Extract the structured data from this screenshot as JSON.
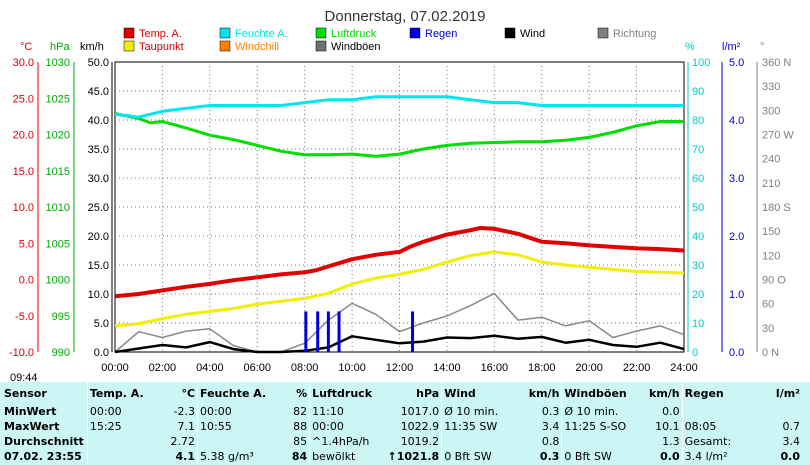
{
  "title": "Donnerstag, 07.02.2019",
  "legend": [
    {
      "label": "Temp. A.",
      "color": "#e00000"
    },
    {
      "label": "Feuchte A.",
      "color": "#00e5ee"
    },
    {
      "label": "Luftdruck",
      "color": "#00dd00"
    },
    {
      "label": "Regen",
      "color": "#0000dd"
    },
    {
      "label": "Wind",
      "color": "#000000"
    },
    {
      "label": "Richtung",
      "color": "#808080"
    },
    {
      "label": "Taupunkt",
      "color": "#f0f000"
    },
    {
      "label": "Windchill",
      "color": "#ff8000"
    },
    {
      "label": "Windböen",
      "color": "#707070"
    }
  ],
  "axis_units": {
    "temp": "°C",
    "press": "hPa",
    "wind": "km/h",
    "hum": "%",
    "rain": "l/m²",
    "dir": "°"
  },
  "time_label": "09:44",
  "chart_data": {
    "type": "line",
    "title": "Donnerstag, 07.02.2019",
    "x_ticks": [
      "00:00",
      "02:00",
      "04:00",
      "06:00",
      "08:00",
      "10:00",
      "12:00",
      "14:00",
      "16:00",
      "18:00",
      "20:00",
      "22:00",
      "24:00"
    ],
    "axes": {
      "temp_c": {
        "range": [
          -10,
          30
        ],
        "ticks": [
          "30.0",
          "25.0",
          "20.0",
          "15.0",
          "10.0",
          "5.0",
          "0.0",
          "-5.0",
          "-10.0"
        ]
      },
      "pressure_hpa": {
        "range": [
          990,
          1030
        ],
        "ticks": [
          "1030",
          "1025",
          "1020",
          "1015",
          "1010",
          "1005",
          "1000",
          "995",
          "990"
        ]
      },
      "wind_kmh": {
        "range": [
          0,
          50
        ],
        "ticks": [
          "50.0",
          "45.0",
          "40.0",
          "35.0",
          "30.0",
          "25.0",
          "20.0",
          "15.0",
          "10.0",
          "5.0",
          "0.0"
        ]
      },
      "humidity_pct": {
        "range": [
          0,
          100
        ],
        "ticks": [
          "100",
          "90",
          "80",
          "70",
          "60",
          "50",
          "40",
          "30",
          "20",
          "10",
          "0"
        ]
      },
      "rain_lm2": {
        "range": [
          0,
          5
        ],
        "ticks": [
          "5.0",
          "4.0",
          "3.0",
          "2.0",
          "1.0",
          "0.0"
        ]
      },
      "direction": {
        "range": [
          0,
          360
        ],
        "ticks": [
          "360 N",
          "330",
          "300",
          "270 W",
          "240",
          "210",
          "180 S",
          "150",
          "120",
          "90 O",
          "60",
          "30",
          "0 N"
        ]
      }
    },
    "series": [
      {
        "name": "Temp. A.",
        "axis": "temp_c",
        "x": [
          0,
          1,
          2,
          3,
          4,
          5,
          6,
          7,
          8,
          8.5,
          9,
          9.5,
          10,
          11,
          12,
          12.5,
          13,
          14,
          15,
          15.4,
          16,
          17,
          18,
          19,
          20,
          21,
          22,
          23,
          24
        ],
        "values": [
          -2.3,
          -2.0,
          -1.5,
          -1.0,
          -0.6,
          -0.1,
          0.3,
          0.7,
          1.0,
          1.3,
          1.8,
          2.3,
          2.8,
          3.4,
          3.8,
          4.6,
          5.2,
          6.2,
          6.8,
          7.1,
          7.0,
          6.3,
          5.2,
          5.0,
          4.7,
          4.5,
          4.3,
          4.2,
          4.0
        ]
      },
      {
        "name": "Taupunkt",
        "axis": "temp_c",
        "x": [
          0,
          1,
          2,
          3,
          4,
          5,
          6,
          7,
          8,
          9,
          10,
          11,
          12,
          13,
          14,
          15,
          16,
          17,
          18,
          19,
          20,
          21,
          22,
          23,
          24
        ],
        "values": [
          -6.4,
          -6.1,
          -5.4,
          -4.8,
          -4.4,
          -4.0,
          -3.4,
          -3.0,
          -2.6,
          -1.9,
          -0.6,
          0.2,
          0.7,
          1.4,
          2.4,
          3.3,
          3.8,
          3.4,
          2.4,
          2.0,
          1.7,
          1.4,
          1.1,
          1.0,
          0.9
        ]
      },
      {
        "name": "Feuchte A.",
        "axis": "humidity_pct",
        "x": [
          0,
          1,
          2,
          3,
          4,
          5,
          6,
          7,
          8,
          9,
          10,
          11,
          12,
          13,
          14,
          15,
          16,
          17,
          18,
          19,
          20,
          21,
          22,
          23,
          24
        ],
        "values": [
          82,
          81,
          83,
          84,
          85,
          85,
          85,
          85,
          86,
          87,
          87,
          88,
          88,
          88,
          88,
          87,
          86,
          86,
          85,
          85,
          85,
          85,
          85,
          85,
          85
        ]
      },
      {
        "name": "Luftdruck",
        "axis": "pressure_hpa",
        "x": [
          0,
          1,
          1.5,
          2,
          3,
          4,
          5,
          6,
          7,
          8,
          9,
          10,
          11,
          12,
          13,
          14,
          15,
          16,
          17,
          18,
          19,
          20,
          21,
          22,
          23,
          24
        ],
        "values": [
          1022.9,
          1022.2,
          1021.6,
          1021.8,
          1020.9,
          1019.9,
          1019.3,
          1018.5,
          1017.7,
          1017.2,
          1017.2,
          1017.3,
          1017.0,
          1017.3,
          1018.0,
          1018.5,
          1018.8,
          1018.9,
          1019.0,
          1019.0,
          1019.2,
          1019.6,
          1020.3,
          1021.2,
          1021.8,
          1021.8
        ]
      },
      {
        "name": "Wind",
        "axis": "wind_kmh",
        "x": [
          0,
          1,
          2,
          3,
          4,
          5,
          6,
          7,
          8,
          9,
          10,
          11,
          12,
          13,
          14,
          15,
          16,
          17,
          18,
          19,
          20,
          21,
          22,
          23,
          24
        ],
        "values": [
          0.0,
          0.6,
          1.2,
          0.8,
          1.7,
          0.5,
          0.0,
          0.0,
          0.2,
          0.8,
          2.7,
          2.1,
          1.5,
          1.8,
          2.5,
          2.4,
          2.8,
          2.3,
          2.6,
          1.6,
          2.1,
          1.2,
          0.9,
          1.6,
          0.5
        ]
      },
      {
        "name": "Windböen",
        "axis": "wind_kmh",
        "x": [
          0,
          1,
          2,
          3,
          4,
          5,
          6,
          7,
          8,
          9,
          10,
          11,
          12,
          13,
          14,
          15,
          16,
          17,
          18,
          19,
          20,
          21,
          22,
          23,
          24
        ],
        "values": [
          0.0,
          3.5,
          2.5,
          3.6,
          4.0,
          1.1,
          0.0,
          0.0,
          1.5,
          5.5,
          8.4,
          6.5,
          3.5,
          5.0,
          6.2,
          8.0,
          10.1,
          5.5,
          6.0,
          4.5,
          5.4,
          2.5,
          3.6,
          4.5,
          3.0
        ]
      },
      {
        "name": "Regen",
        "axis": "rain_lm2",
        "type": "bar",
        "x": [
          8.05,
          8.55,
          9.0,
          9.45,
          12.55
        ],
        "values": [
          0.7,
          0.7,
          0.7,
          0.7,
          0.7
        ]
      }
    ]
  },
  "stats": {
    "headers": [
      "Sensor",
      "Temp. A.",
      "°C",
      "Feuchte A.",
      "%",
      "Luftdruck",
      "hPa",
      "Wind",
      "km/h",
      "Windböen",
      "km/h",
      "Regen",
      "l/m²"
    ],
    "rows": [
      {
        "label": "MinWert",
        "t_time": "00:00",
        "t_val": "-2.3",
        "h_time": "00:00",
        "h_val": "82",
        "p_time": "11:10",
        "p_val": "1017.0",
        "w_a": "Ø 10 min.",
        "w_b": "",
        "w_val": "0.3",
        "g_a": "Ø 10 min.",
        "g_b": "",
        "g_val": "0.0",
        "r_a": "",
        "r_val": ""
      },
      {
        "label": "MaxWert",
        "t_time": "15:25",
        "t_val": "7.1",
        "h_time": "10:55",
        "h_val": "88",
        "p_time": "00:00",
        "p_val": "1022.9",
        "w_a": "11:35",
        "w_b": "SW",
        "w_val": "3.4",
        "g_a": "11:25",
        "g_b": "S-SO",
        "g_val": "10.1",
        "r_a": "08:05",
        "r_val": "0.7"
      },
      {
        "label": "Durchschnitt",
        "t_time": "",
        "t_val": "2.72",
        "h_time": "",
        "h_val": "85",
        "p_time": "^1.4hPa/h",
        "p_val": "1019.2",
        "w_a": "",
        "w_b": "",
        "w_val": "0.8",
        "g_a": "",
        "g_b": "",
        "g_val": "1.3",
        "r_a": "Gesamt:",
        "r_val": "3.4"
      },
      {
        "label": "07.02. 23:55",
        "t_time": "",
        "t_val": "4.1",
        "h_time": "5.38 g/m³",
        "h_val": "84",
        "p_time": "bewölkt",
        "p_val": "↑1021.8",
        "w_a": "0 Bft SW",
        "w_b": "",
        "w_val": "0.3",
        "g_a": "0 Bft SW",
        "g_b": "",
        "g_val": "0.0",
        "r_a": "3.4 l/m²",
        "r_val": "0.0"
      }
    ]
  }
}
